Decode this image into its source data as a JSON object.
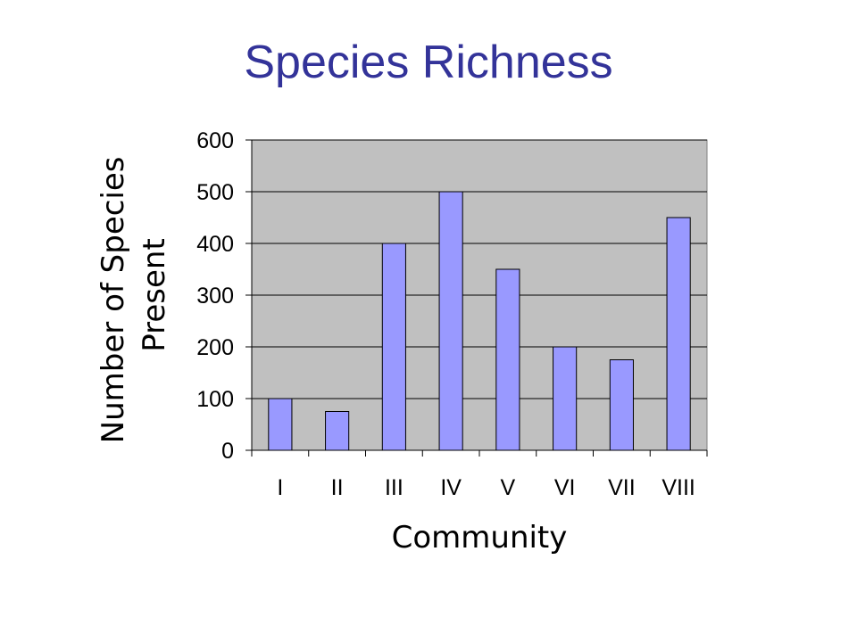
{
  "slide": {
    "title": "Species Richness"
  },
  "colors": {
    "title": "#333399",
    "bar_fill": "#9999FF",
    "plot_background": "#C0C0C0",
    "gridline": "#000000"
  },
  "chart_data": {
    "type": "bar",
    "categories": [
      "I",
      "II",
      "III",
      "IV",
      "V",
      "VI",
      "VII",
      "VIII"
    ],
    "values": [
      100,
      75,
      400,
      500,
      350,
      200,
      175,
      450
    ],
    "xlabel": "Community",
    "ylabel_lines": [
      "Number of Species",
      "Present"
    ],
    "ylim": [
      0,
      600
    ],
    "yticks": [
      0,
      100,
      200,
      300,
      400,
      500,
      600
    ],
    "grid": true,
    "legend": "none"
  }
}
